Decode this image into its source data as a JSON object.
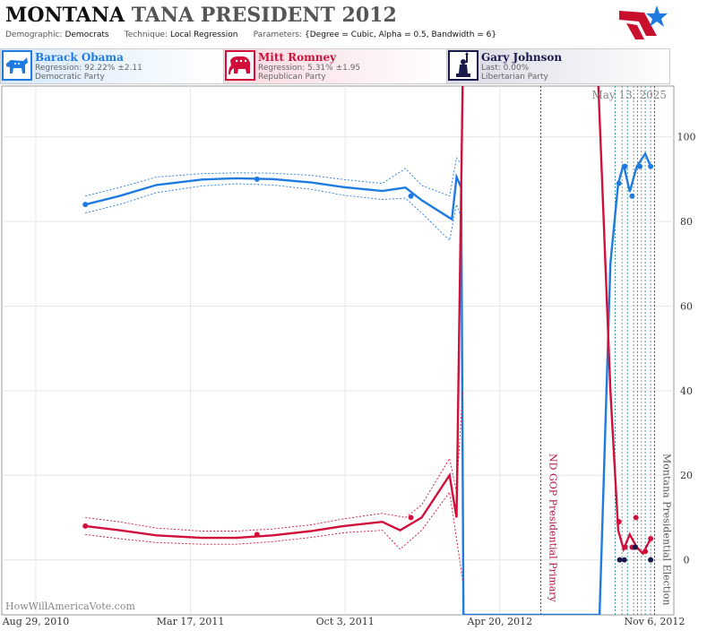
{
  "header": {
    "state": "MONTANA",
    "race": "TANA PRESIDENT 2012",
    "demographic_label": "Demographic:",
    "demographic_value": "Democrats",
    "technique_label": "Technique:",
    "technique_value": "Local Regression",
    "parameters_label": "Parameters:",
    "parameters_value": "{Degree = Cubic, Alpha = 0.5, Bandwidth = 6}"
  },
  "candidates": [
    {
      "name": "Barack Obama",
      "line2": "Regression: 92.22% ±2.11",
      "line3": "Democratic Party",
      "color": "#1f7be0",
      "icon": "donkey-icon"
    },
    {
      "name": "Mitt Romney",
      "line2": "Regression: 5.31% ±1.95",
      "line3": "Republican Party",
      "color": "#d0103a",
      "icon": "elephant-icon"
    },
    {
      "name": "Gary Johnson",
      "line2": "Last: 0.00%",
      "line3": "Libertarian Party",
      "color": "#1a1a4a",
      "icon": "statue-of-liberty-icon"
    }
  ],
  "chart_data": {
    "type": "line",
    "date_stamp": "May 13, 2025",
    "watermark": "HowWillAmericaVote.com",
    "x_ticks": [
      "Aug 29, 2010",
      "Mar 17, 2011",
      "Oct 3, 2011",
      "Apr 20, 2012",
      "Nov 6, 2012"
    ],
    "x_tick_dates": [
      "2010-08-29",
      "2011-03-17",
      "2011-10-03",
      "2012-04-20",
      "2012-11-06"
    ],
    "x_range": [
      "2010-07-16",
      "2012-12-01"
    ],
    "y_ticks": [
      0,
      20,
      40,
      60,
      80,
      100
    ],
    "ylim": [
      -13,
      112
    ],
    "grid": true,
    "events": [
      {
        "label": "ND GOP Presidential Primary",
        "date": "2012-06-12",
        "color": "#b0104a"
      },
      {
        "label": "Montana Presidential Election",
        "date": "2012-11-06",
        "color": "#555555"
      }
    ],
    "poll_lines": [
      "2012-09-16",
      "2012-09-25",
      "2012-10-02",
      "2012-10-10",
      "2012-10-15",
      "2012-10-20",
      "2012-10-25",
      "2012-11-01"
    ],
    "series": [
      {
        "name": "Barack Obama",
        "color": "#1f7be0",
        "trend": [
          [
            "2010-11-01",
            84
          ],
          [
            "2010-12-15",
            86
          ],
          [
            "2011-02-01",
            88.6
          ],
          [
            "2011-04-01",
            89.9
          ],
          [
            "2011-05-15",
            90.2
          ],
          [
            "2011-07-01",
            90
          ],
          [
            "2011-08-20",
            89.2
          ],
          [
            "2011-10-01",
            88.1
          ],
          [
            "2011-11-20",
            87.2
          ],
          [
            "2011-12-20",
            88
          ],
          [
            "2012-01-10",
            85
          ],
          [
            "2012-02-18",
            80.5
          ],
          [
            "2012-02-24",
            90.5
          ],
          [
            "2012-03-01",
            88
          ],
          [
            "2012-03-04",
            -13
          ],
          [
            "2012-08-27",
            -13
          ],
          [
            "2012-09-10",
            70
          ],
          [
            "2012-09-20",
            89
          ],
          [
            "2012-09-27",
            93.5
          ],
          [
            "2012-10-05",
            87
          ],
          [
            "2012-10-14",
            93
          ],
          [
            "2012-10-25",
            96
          ],
          [
            "2012-11-01",
            93
          ]
        ],
        "upper": [
          [
            "2010-11-01",
            86
          ],
          [
            "2010-12-15",
            88
          ],
          [
            "2011-02-01",
            90.5
          ],
          [
            "2011-04-01",
            91.3
          ],
          [
            "2011-05-15",
            91.5
          ],
          [
            "2011-07-01",
            91.4
          ],
          [
            "2011-08-20",
            90.9
          ],
          [
            "2011-10-01",
            89.9
          ],
          [
            "2011-11-20",
            89
          ],
          [
            "2011-12-20",
            92.5
          ],
          [
            "2012-01-10",
            88.5
          ],
          [
            "2012-02-15",
            86
          ],
          [
            "2012-02-24",
            95
          ],
          [
            "2012-03-03",
            93
          ]
        ],
        "lower": [
          [
            "2010-11-01",
            82
          ],
          [
            "2010-12-15",
            84
          ],
          [
            "2011-02-01",
            86.8
          ],
          [
            "2011-04-01",
            88.4
          ],
          [
            "2011-05-15",
            88.9
          ],
          [
            "2011-07-01",
            88.6
          ],
          [
            "2011-08-20",
            87.6
          ],
          [
            "2011-10-01",
            86.2
          ],
          [
            "2011-11-20",
            85.2
          ],
          [
            "2011-12-20",
            85.5
          ],
          [
            "2012-01-10",
            82
          ],
          [
            "2012-02-15",
            75.5
          ],
          [
            "2012-02-24",
            84
          ],
          [
            "2012-03-03",
            80
          ]
        ],
        "points": [
          [
            "2010-11-01",
            84
          ],
          [
            "2011-06-11",
            90
          ],
          [
            "2011-12-27",
            86
          ],
          [
            "2012-09-21",
            89
          ],
          [
            "2012-09-29",
            93
          ],
          [
            "2012-10-08",
            86
          ],
          [
            "2012-10-18",
            93
          ],
          [
            "2012-11-01",
            93
          ]
        ]
      },
      {
        "name": "Mitt Romney",
        "color": "#d0103a",
        "trend": [
          [
            "2010-11-01",
            8
          ],
          [
            "2010-12-15",
            7
          ],
          [
            "2011-02-01",
            5.8
          ],
          [
            "2011-04-01",
            5.2
          ],
          [
            "2011-05-15",
            5.2
          ],
          [
            "2011-07-01",
            5.8
          ],
          [
            "2011-08-20",
            6.8
          ],
          [
            "2011-10-01",
            8
          ],
          [
            "2011-11-20",
            9
          ],
          [
            "2011-12-13",
            7
          ],
          [
            "2012-01-10",
            10
          ],
          [
            "2012-02-15",
            20
          ],
          [
            "2012-02-24",
            10
          ],
          [
            "2012-03-03",
            114
          ],
          [
            "2012-08-25",
            114
          ],
          [
            "2012-09-10",
            40
          ],
          [
            "2012-09-20",
            7
          ],
          [
            "2012-09-27",
            2.5
          ],
          [
            "2012-10-05",
            6
          ],
          [
            "2012-10-14",
            3
          ],
          [
            "2012-10-22",
            1.5
          ],
          [
            "2012-11-01",
            5
          ]
        ],
        "upper": [
          [
            "2010-11-01",
            10
          ],
          [
            "2010-12-15",
            9
          ],
          [
            "2011-02-01",
            7.5
          ],
          [
            "2011-04-01",
            6.8
          ],
          [
            "2011-05-15",
            6.8
          ],
          [
            "2011-07-01",
            7.3
          ],
          [
            "2011-08-20",
            8.3
          ],
          [
            "2011-10-01",
            9.7
          ],
          [
            "2011-11-20",
            11
          ],
          [
            "2011-12-20",
            10
          ],
          [
            "2012-01-10",
            13
          ],
          [
            "2012-02-15",
            24
          ],
          [
            "2012-02-24",
            16
          ],
          [
            "2012-03-03",
            40
          ]
        ],
        "lower": [
          [
            "2010-11-01",
            6
          ],
          [
            "2010-12-15",
            5
          ],
          [
            "2011-02-01",
            4.1
          ],
          [
            "2011-04-01",
            3.7
          ],
          [
            "2011-05-15",
            3.7
          ],
          [
            "2011-07-01",
            4.3
          ],
          [
            "2011-08-20",
            5.3
          ],
          [
            "2011-10-01",
            6.4
          ],
          [
            "2011-11-20",
            7
          ],
          [
            "2011-12-13",
            2.5
          ],
          [
            "2012-01-10",
            7
          ],
          [
            "2012-02-15",
            16
          ],
          [
            "2012-02-24",
            5
          ],
          [
            "2012-03-03",
            -5
          ]
        ],
        "points": [
          [
            "2010-11-01",
            8
          ],
          [
            "2011-06-11",
            6
          ],
          [
            "2011-12-27",
            10
          ],
          [
            "2012-09-21",
            9
          ],
          [
            "2012-09-29",
            3
          ],
          [
            "2012-10-08",
            3
          ],
          [
            "2012-10-13",
            10
          ],
          [
            "2012-10-25",
            2
          ],
          [
            "2012-11-01",
            5
          ]
        ]
      },
      {
        "name": "Gary Johnson",
        "color": "#1a1a4a",
        "points": [
          [
            "2012-09-22",
            0
          ],
          [
            "2012-09-28",
            0
          ],
          [
            "2012-10-12",
            3
          ],
          [
            "2012-11-01",
            0
          ]
        ]
      }
    ]
  }
}
